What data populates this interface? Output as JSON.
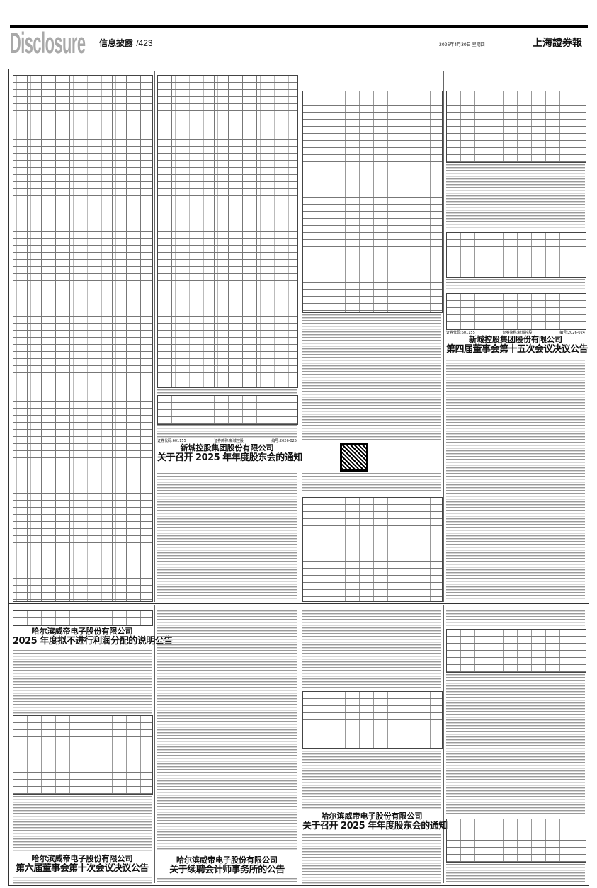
{
  "header": {
    "masthead": "Disclosure",
    "section": "信息披露",
    "page_number": "/423",
    "date": "2026年4月30日 星期四",
    "newspaper": "上海證券報"
  },
  "articles": [
    {
      "id": "xincheng-agm",
      "code_line": [
        "证券代码:601155",
        "证券简称:新城控股",
        "编号:2026-025"
      ],
      "company": "新城控股集团股份有限公司",
      "title": "关于召开 2025 年年度股东会的通知"
    },
    {
      "id": "xincheng-board",
      "code_line": [
        "证券代码:601155",
        "证券简称:新城控股",
        "编号:2026-024"
      ],
      "company": "新城控股集团股份有限公司",
      "title": "第四届董事会第十五次会议决议公告"
    },
    {
      "id": "weidi-profit",
      "company": "哈尔滨威帝电子股份有限公司",
      "title": "2025 年度拟不进行利润分配的说明公告"
    },
    {
      "id": "weidi-board",
      "company": "哈尔滨威帝电子股份有限公司",
      "title": "第六届董事会第十次会议决议公告"
    },
    {
      "id": "weidi-auditor",
      "company": "哈尔滨威帝电子股份有限公司",
      "title": "关于续聘会计师事务所的公告"
    },
    {
      "id": "weidi-agm",
      "company": "哈尔滨威帝电子股份有限公司",
      "title": "关于召开 2025 年年度股东会的通知"
    }
  ]
}
